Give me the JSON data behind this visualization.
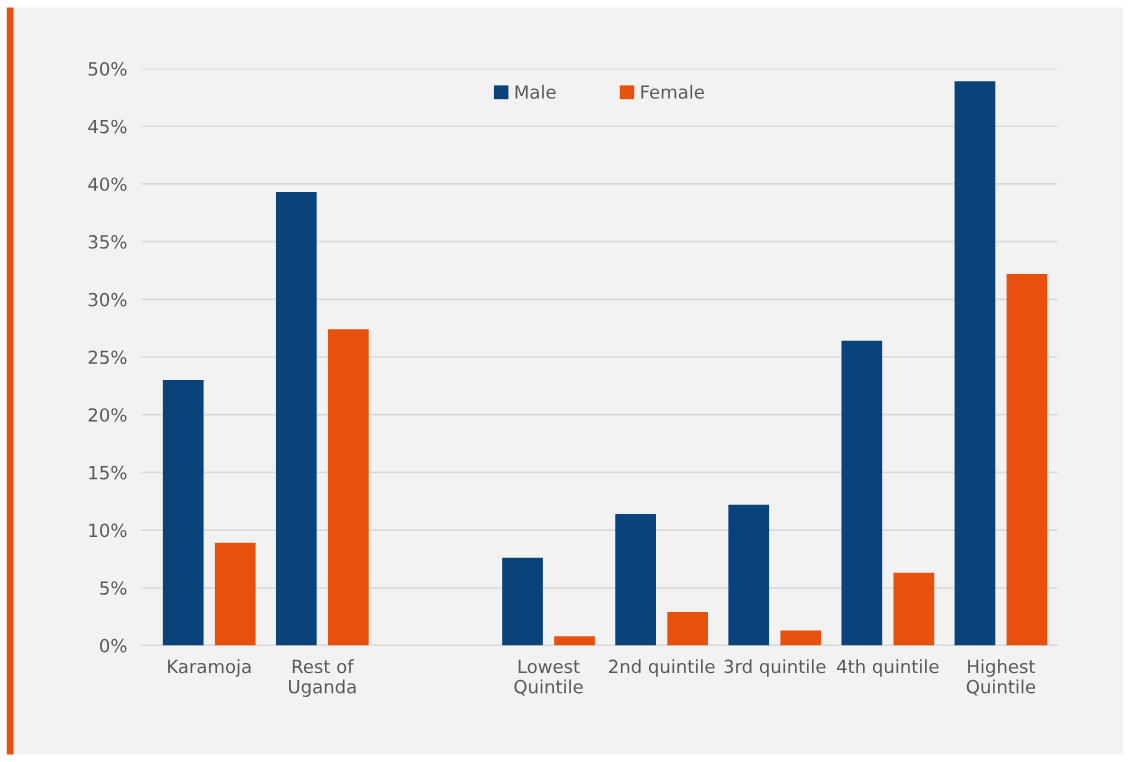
{
  "chart_data": {
    "type": "bar",
    "categories": [
      "Karamoja",
      "Rest of\nUganda",
      null,
      "Lowest\nQuintile",
      "2nd quintile",
      "3rd quintile",
      "4th quintile",
      "Highest\nQuintile"
    ],
    "series": [
      {
        "name": "Male",
        "color": "#0a437a",
        "values": [
          23.0,
          39.3,
          null,
          7.6,
          11.4,
          12.2,
          26.4,
          48.9
        ]
      },
      {
        "name": "Female",
        "color": "#e8500e",
        "values": [
          8.9,
          27.4,
          null,
          0.8,
          2.9,
          1.3,
          6.3,
          32.2
        ]
      }
    ],
    "ylim": [
      0,
      50
    ],
    "yticks": [
      {
        "value": 0,
        "label": "0%"
      },
      {
        "value": 5,
        "label": "5%"
      },
      {
        "value": 10,
        "label": "10%"
      },
      {
        "value": 15,
        "label": "15%"
      },
      {
        "value": 20,
        "label": "20%"
      },
      {
        "value": 25,
        "label": "25%"
      },
      {
        "value": 30,
        "label": "30%"
      },
      {
        "value": 35,
        "label": "35%"
      },
      {
        "value": 40,
        "label": "40%"
      },
      {
        "value": 45,
        "label": "45%"
      },
      {
        "value": 50,
        "label": "50%"
      }
    ],
    "grid": "y",
    "legend": "top"
  }
}
